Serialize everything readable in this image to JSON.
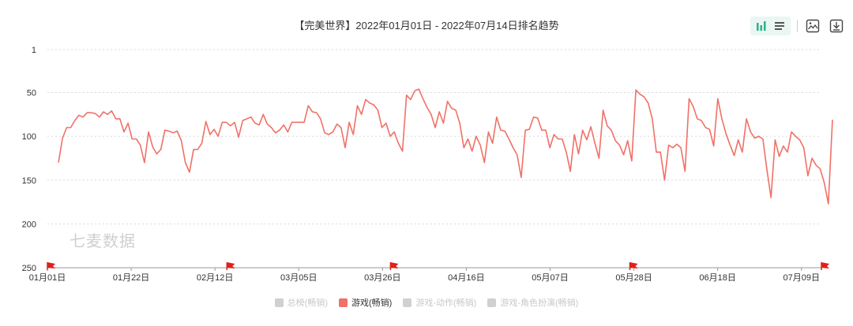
{
  "title": "【完美世界】2022年01月01日 - 2022年07月14日排名趋势",
  "watermark": "七麦数据",
  "toolbar": {
    "icons": [
      "bar-chart-icon",
      "list-icon",
      "image-icon",
      "download-icon"
    ]
  },
  "colors": {
    "line": "#f07167",
    "flag": "#e0201a",
    "grid": "#d9d9d9",
    "axis": "#666666",
    "toolbar_bg": "#eaf6f2",
    "toolbar_icon": "#2ab38b"
  },
  "legend": [
    {
      "label": "总榜(畅销)",
      "active": false
    },
    {
      "label": "游戏(畅销)",
      "active": true,
      "color": "#f07167"
    },
    {
      "label": "游戏-动作(畅销)",
      "active": false
    },
    {
      "label": "游戏-角色扮演(畅销)",
      "active": false
    }
  ],
  "chart_data": {
    "type": "line",
    "title": "【完美世界】2022年01月01日 - 2022年07月14日排名趋势",
    "xlabel": "",
    "ylabel": "",
    "y_inverted": true,
    "ylim": [
      1,
      250
    ],
    "yticks": [
      1,
      50,
      100,
      150,
      200,
      250
    ],
    "xticks": [
      "01月01日",
      "01月22日",
      "02月12日",
      "03月05日",
      "03月26日",
      "04月16日",
      "05月07日",
      "05月28日",
      "06月18日",
      "07月09日"
    ],
    "x_start": "2022-01-01",
    "x_end": "2022-07-14",
    "grid": true,
    "legend_position": "bottom",
    "flag_dates": [
      "2022-01-01",
      "2022-02-15",
      "2022-03-28",
      "2022-05-27",
      "2022-07-14"
    ],
    "series": [
      {
        "name": "游戏(畅销)",
        "values": [
          130,
          102,
          90,
          90,
          82,
          76,
          78,
          73,
          73,
          74,
          78,
          72,
          75,
          71,
          80,
          80,
          95,
          85,
          103,
          103,
          110,
          130,
          95,
          112,
          120,
          115,
          93,
          94,
          96,
          94,
          105,
          130,
          141,
          115,
          115,
          108,
          83,
          98,
          92,
          100,
          84,
          84,
          88,
          84,
          101,
          82,
          80,
          78,
          85,
          87,
          75,
          86,
          90,
          96,
          93,
          87,
          95,
          84,
          84,
          84,
          84,
          65,
          72,
          73,
          80,
          96,
          98,
          95,
          86,
          90,
          113,
          84,
          98,
          65,
          75,
          58,
          62,
          64,
          70,
          90,
          85,
          100,
          95,
          108,
          117,
          53,
          58,
          48,
          46,
          57,
          67,
          75,
          90,
          72,
          85,
          60,
          68,
          70,
          85,
          113,
          103,
          117,
          100,
          110,
          130,
          95,
          108,
          78,
          93,
          94,
          103,
          113,
          121,
          147,
          93,
          92,
          78,
          79,
          93,
          93,
          113,
          98,
          103,
          103,
          118,
          140,
          98,
          120,
          93,
          104,
          89,
          108,
          125,
          70,
          88,
          93,
          105,
          110,
          121,
          105,
          128,
          47,
          52,
          55,
          62,
          80,
          118,
          118,
          150,
          110,
          113,
          109,
          113,
          140,
          57,
          66,
          80,
          82,
          90,
          92,
          111,
          57,
          80,
          97,
          110,
          122,
          104,
          118,
          80,
          95,
          102,
          100,
          103,
          138,
          170,
          104,
          123,
          111,
          118,
          95,
          100,
          104,
          113,
          145,
          125,
          133,
          137,
          153,
          177,
          81
        ]
      }
    ]
  }
}
